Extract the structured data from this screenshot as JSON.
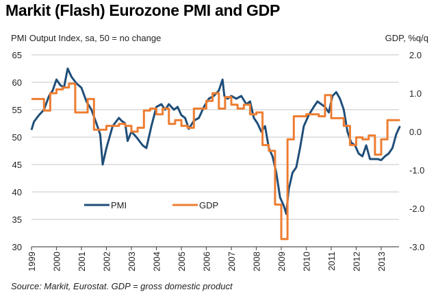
{
  "chart_data": {
    "type": "line",
    "title": "Markit (Flash) Eurozone PMI and GDP",
    "ylabel_left": "PMI Output  Index, sa, 50 = no change",
    "ylabel_right": "GDP, %q/q",
    "source": "Source: Markit, Eurostat. GDP = gross domestic product",
    "xlabel": "",
    "x_ticks": [
      "1999",
      "2000",
      "2001",
      "2002",
      "2003",
      "2004",
      "2005",
      "2006",
      "2007",
      "2008",
      "2009",
      "2010",
      "2011",
      "2012",
      "2013"
    ],
    "y_left_ticks": [
      "65",
      "60",
      "55",
      "50",
      "45",
      "40",
      "35",
      "30"
    ],
    "y_right_ticks": [
      "2.0",
      "1.0",
      "0.0",
      "-1.0",
      "-2.0",
      "-3.0"
    ],
    "ylim_left": [
      30,
      65
    ],
    "ylim_right": [
      -3.0,
      2.0
    ],
    "xlim": [
      1999,
      2013.95
    ],
    "grid": true,
    "legend": {
      "placement": "lower-left",
      "entries": [
        "PMI",
        "GDP"
      ]
    },
    "colors": {
      "PMI": "#1f4e79",
      "GDP": "#ed7d31"
    },
    "series": [
      {
        "name": "PMI",
        "axis": "left",
        "x": [
          1999.0,
          1999.1,
          1999.3,
          1999.5,
          1999.7,
          1999.85,
          2000.0,
          2000.15,
          2000.3,
          2000.45,
          2000.6,
          2000.8,
          2001.0,
          2001.2,
          2001.4,
          2001.6,
          2001.75,
          2001.85,
          2002.0,
          2002.25,
          2002.5,
          2002.6,
          2002.75,
          2002.85,
          2003.0,
          2003.2,
          2003.45,
          2003.6,
          2003.8,
          2004.0,
          2004.2,
          2004.35,
          2004.5,
          2004.7,
          2004.85,
          2005.0,
          2005.15,
          2005.3,
          2005.5,
          2005.7,
          2005.9,
          2006.1,
          2006.3,
          2006.5,
          2006.65,
          2006.72,
          2006.85,
          2007.0,
          2007.2,
          2007.4,
          2007.6,
          2007.75,
          2007.9,
          2008.05,
          2008.2,
          2008.35,
          2008.5,
          2008.65,
          2008.8,
          2008.95,
          2009.1,
          2009.2,
          2009.3,
          2009.45,
          2009.6,
          2009.75,
          2009.9,
          2010.1,
          2010.3,
          2010.45,
          2010.6,
          2010.75,
          2010.9,
          2011.05,
          2011.2,
          2011.35,
          2011.5,
          2011.65,
          2011.8,
          2011.95,
          2012.1,
          2012.25,
          2012.4,
          2012.55,
          2012.7,
          2012.85,
          2013.0,
          2013.15,
          2013.3,
          2013.45,
          2013.6,
          2013.75
        ],
        "values": [
          51.3,
          52.8,
          54.0,
          55.0,
          57.5,
          58.5,
          60.5,
          59.5,
          59.0,
          62.5,
          61.0,
          59.8,
          59.0,
          56.5,
          55.0,
          52.5,
          50.5,
          45.0,
          48.0,
          52.0,
          53.5,
          53.0,
          52.5,
          49.3,
          51.0,
          50.0,
          48.5,
          48.0,
          52.0,
          55.5,
          56.0,
          55.0,
          56.0,
          55.0,
          55.5,
          54.0,
          53.5,
          51.5,
          53.0,
          53.5,
          55.5,
          57.0,
          57.5,
          58.5,
          60.5,
          57.5,
          57.0,
          57.5,
          57.0,
          57.5,
          56.0,
          56.5,
          53.5,
          52.5,
          51.0,
          52.0,
          48.0,
          46.5,
          43.5,
          39.0,
          37.5,
          36.0,
          40.5,
          43.5,
          44.5,
          48.0,
          52.0,
          54.0,
          55.5,
          56.5,
          56.0,
          55.5,
          54.5,
          57.5,
          58.2,
          57.0,
          55.0,
          51.0,
          49.0,
          48.5,
          47.0,
          46.5,
          48.5,
          46.0,
          46.0,
          46.0,
          45.8,
          46.5,
          47.0,
          48.0,
          50.5,
          52.0
        ]
      },
      {
        "name": "GDP",
        "axis": "right",
        "quarter_start": [
          1999.0,
          1999.25,
          1999.5,
          1999.75,
          2000.0,
          2000.25,
          2000.5,
          2000.75,
          2001.0,
          2001.25,
          2001.5,
          2001.75,
          2002.0,
          2002.25,
          2002.5,
          2002.75,
          2003.0,
          2003.25,
          2003.5,
          2003.75,
          2004.0,
          2004.25,
          2004.5,
          2004.75,
          2005.0,
          2005.25,
          2005.5,
          2005.75,
          2006.0,
          2006.25,
          2006.5,
          2006.75,
          2007.0,
          2007.25,
          2007.5,
          2007.75,
          2008.0,
          2008.25,
          2008.5,
          2008.75,
          2009.0,
          2009.25,
          2009.5,
          2009.75,
          2010.0,
          2010.25,
          2010.5,
          2010.75,
          2011.0,
          2011.25,
          2011.5,
          2011.75,
          2012.0,
          2012.25,
          2012.5,
          2012.75,
          2013.0,
          2013.25,
          2013.5
        ],
        "values": [
          0.85,
          0.85,
          0.55,
          1.0,
          1.1,
          1.15,
          1.25,
          0.5,
          0.5,
          0.85,
          0.05,
          0.05,
          0.15,
          0.15,
          0.2,
          0.15,
          0.0,
          0.1,
          0.55,
          0.6,
          0.45,
          0.6,
          0.2,
          0.3,
          0.15,
          0.1,
          0.6,
          0.6,
          0.8,
          1.0,
          0.6,
          0.9,
          0.7,
          0.6,
          0.7,
          0.45,
          0.5,
          -0.35,
          -0.5,
          -1.9,
          -2.8,
          -0.2,
          0.4,
          0.4,
          0.45,
          0.45,
          0.4,
          0.95,
          0.35,
          0.35,
          0.15,
          -0.35,
          -0.15,
          -0.2,
          -0.1,
          -0.6,
          -0.2,
          0.3,
          0.3
        ]
      }
    ]
  }
}
